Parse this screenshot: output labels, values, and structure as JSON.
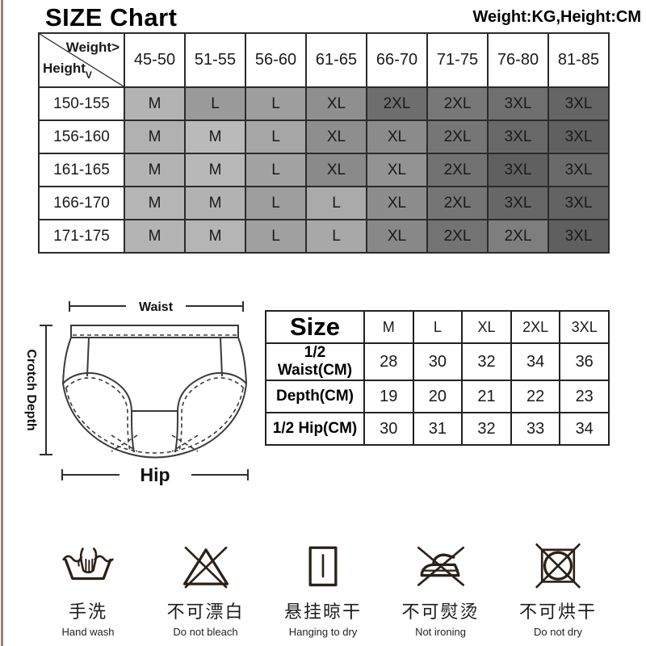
{
  "header": {
    "title": "SIZE Chart",
    "units_note": "Weight:KG,Height:CM"
  },
  "size_chart": {
    "corner": {
      "weight_label": "Weight",
      "weight_arrow": ">",
      "height_label": "Height",
      "height_arrow": "V"
    },
    "weight_columns": [
      "45-50",
      "51-55",
      "56-60",
      "61-65",
      "66-70",
      "71-75",
      "76-80",
      "81-85"
    ],
    "rows": [
      {
        "height": "150-155",
        "cells": [
          {
            "size": "M",
            "bg": "#b3b3b3"
          },
          {
            "size": "L",
            "bg": "#9a9a9a"
          },
          {
            "size": "L",
            "bg": "#9e9e9e"
          },
          {
            "size": "XL",
            "bg": "#8f8f8f"
          },
          {
            "size": "2XL",
            "bg": "#6e6e6e"
          },
          {
            "size": "2XL",
            "bg": "#787878"
          },
          {
            "size": "3XL",
            "bg": "#6f6f6f"
          },
          {
            "size": "3XL",
            "bg": "#656565"
          }
        ]
      },
      {
        "height": "156-160",
        "cells": [
          {
            "size": "M",
            "bg": "#b1b1b1"
          },
          {
            "size": "M",
            "bg": "#bababa"
          },
          {
            "size": "L",
            "bg": "#a6a6a6"
          },
          {
            "size": "XL",
            "bg": "#8e8e8e"
          },
          {
            "size": "XL",
            "bg": "#8b8b8b"
          },
          {
            "size": "2XL",
            "bg": "#767676"
          },
          {
            "size": "3XL",
            "bg": "#686868"
          },
          {
            "size": "3XL",
            "bg": "#606060"
          }
        ]
      },
      {
        "height": "161-165",
        "cells": [
          {
            "size": "M",
            "bg": "#b3b3b3"
          },
          {
            "size": "M",
            "bg": "#b8b8b8"
          },
          {
            "size": "L",
            "bg": "#a3a3a3"
          },
          {
            "size": "XL",
            "bg": "#8a8a8a"
          },
          {
            "size": "XL",
            "bg": "#939393"
          },
          {
            "size": "2XL",
            "bg": "#727272"
          },
          {
            "size": "3XL",
            "bg": "#606060"
          },
          {
            "size": "3XL",
            "bg": "#6a6a6a"
          }
        ]
      },
      {
        "height": "166-170",
        "cells": [
          {
            "size": "M",
            "bg": "#b5b5b5"
          },
          {
            "size": "M",
            "bg": "#b2b2b2"
          },
          {
            "size": "L",
            "bg": "#9e9e9e"
          },
          {
            "size": "L",
            "bg": "#aaaaaa"
          },
          {
            "size": "XL",
            "bg": "#8d8d8d"
          },
          {
            "size": "2XL",
            "bg": "#757575"
          },
          {
            "size": "3XL",
            "bg": "#676767"
          },
          {
            "size": "3XL",
            "bg": "#636363"
          }
        ]
      },
      {
        "height": "171-175",
        "cells": [
          {
            "size": "M",
            "bg": "#b4b4b4"
          },
          {
            "size": "M",
            "bg": "#b5b5b5"
          },
          {
            "size": "L",
            "bg": "#a0a0a0"
          },
          {
            "size": "L",
            "bg": "#a8a8a8"
          },
          {
            "size": "XL",
            "bg": "#888888"
          },
          {
            "size": "2XL",
            "bg": "#737373"
          },
          {
            "size": "2XL",
            "bg": "#7e7e7e"
          },
          {
            "size": "3XL",
            "bg": "#5f5f5f"
          }
        ]
      }
    ]
  },
  "diagram": {
    "waist_label": "Waist",
    "hip_label": "Hip",
    "crotch_depth_label": "Crotch Depth"
  },
  "measurement_table": {
    "title": "Size",
    "columns": [
      "M",
      "L",
      "XL",
      "2XL",
      "3XL"
    ],
    "rows": [
      {
        "label": "1/2 Waist(CM)",
        "values": [
          "28",
          "30",
          "32",
          "34",
          "36"
        ]
      },
      {
        "label": "Depth(CM)",
        "values": [
          "19",
          "20",
          "21",
          "22",
          "23"
        ]
      },
      {
        "label": "1/2 Hip(CM)",
        "values": [
          "30",
          "31",
          "32",
          "33",
          "34"
        ]
      }
    ]
  },
  "care_instructions": [
    {
      "icon": "hand-wash-icon",
      "zh": "手洗",
      "en": "Hand wash"
    },
    {
      "icon": "do-not-bleach-icon",
      "zh": "不可漂白",
      "en": "Do not bleach"
    },
    {
      "icon": "hanging-to-dry-icon",
      "zh": "悬挂晾干",
      "en": "Hanging to dry"
    },
    {
      "icon": "do-not-iron-icon",
      "zh": "不可熨烫",
      "en": "Not ironing"
    },
    {
      "icon": "do-not-dry-icon",
      "zh": "不可烘干",
      "en": "Do not dry"
    }
  ],
  "colors": {
    "table_border": "#2b2b2b",
    "cell_text": "#1a1a1a",
    "icon_stroke": "#2b2118",
    "left_strip": "#96857d"
  }
}
